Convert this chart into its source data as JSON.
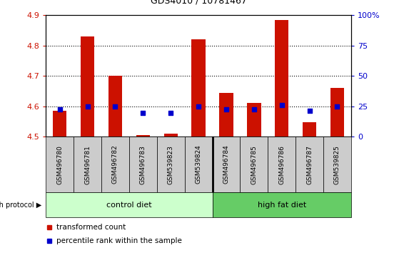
{
  "title": "GDS4010 / 10781467",
  "samples": [
    "GSM496780",
    "GSM496781",
    "GSM496782",
    "GSM496783",
    "GSM539823",
    "GSM539824",
    "GSM496784",
    "GSM496785",
    "GSM496786",
    "GSM496787",
    "GSM539825"
  ],
  "red_values": [
    4.585,
    4.83,
    4.7,
    4.505,
    4.51,
    4.82,
    4.645,
    4.61,
    4.885,
    4.548,
    4.66
  ],
  "blue_values": [
    4.59,
    4.6,
    4.6,
    4.578,
    4.578,
    4.6,
    4.59,
    4.59,
    4.605,
    4.585,
    4.6
  ],
  "ylim_left": [
    4.5,
    4.9
  ],
  "yticks_left": [
    4.5,
    4.6,
    4.7,
    4.8,
    4.9
  ],
  "yticks_right": [
    0,
    25,
    50,
    75,
    100
  ],
  "ylim_right": [
    0,
    100
  ],
  "control_diet_count": 6,
  "high_fat_diet_count": 5,
  "control_label": "control diet",
  "high_fat_label": "high fat diet",
  "growth_protocol_label": "growth protocol",
  "legend_red": "transformed count",
  "legend_blue": "percentile rank within the sample",
  "bar_width": 0.5,
  "red_color": "#cc1100",
  "blue_color": "#0000cc",
  "control_bg": "#ccffcc",
  "highfat_bg": "#66cc66",
  "sample_bg": "#cccccc",
  "left_tick_color": "#cc1100",
  "right_tick_color": "#0000cc",
  "grid_ticks": [
    4.6,
    4.7,
    4.8
  ]
}
